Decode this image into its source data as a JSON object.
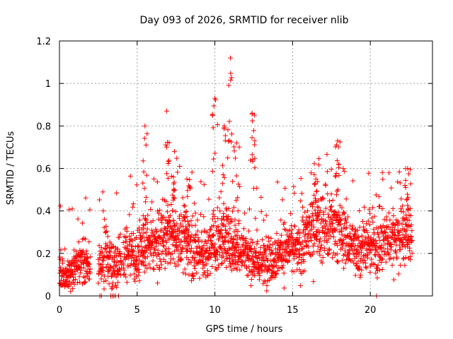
{
  "chart_data": {
    "type": "scatter",
    "title": "Day 093 of 2026, SRMTID for receiver nlib",
    "xlabel": "GPS time / hours",
    "ylabel": "SRMTID / TECUs",
    "xlim": [
      0,
      24
    ],
    "ylim": [
      0,
      1.2
    ],
    "x_ticks": [
      0,
      5,
      10,
      15,
      20
    ],
    "x_tick_labels": [
      "0",
      "5",
      "10",
      "15",
      "20"
    ],
    "y_ticks": [
      0,
      0.2,
      0.4,
      0.6,
      0.8,
      1,
      1.2
    ],
    "y_tick_labels": [
      "0",
      "0.2",
      "0.4",
      "0.6",
      "0.8",
      "1",
      "1.2"
    ],
    "grid": true,
    "marker": "+",
    "marker_color": "#ff0000",
    "series": [
      {
        "name": "SRMTID",
        "coverage_hours": [
          [
            0,
            2.0
          ],
          [
            2.5,
            4.0
          ],
          [
            4.1,
            22.7
          ]
        ],
        "trend": [
          [
            0.0,
            0.1
          ],
          [
            0.5,
            0.1
          ],
          [
            1.0,
            0.14
          ],
          [
            1.5,
            0.16
          ],
          [
            2.0,
            0.13
          ],
          [
            2.6,
            0.13
          ],
          [
            3.0,
            0.2
          ],
          [
            3.5,
            0.14
          ],
          [
            4.0,
            0.18
          ],
          [
            4.5,
            0.22
          ],
          [
            5.0,
            0.18
          ],
          [
            5.5,
            0.22
          ],
          [
            6.0,
            0.25
          ],
          [
            6.5,
            0.25
          ],
          [
            7.0,
            0.27
          ],
          [
            7.5,
            0.27
          ],
          [
            8.0,
            0.25
          ],
          [
            8.5,
            0.24
          ],
          [
            9.0,
            0.2
          ],
          [
            9.5,
            0.19
          ],
          [
            10.0,
            0.24
          ],
          [
            10.5,
            0.26
          ],
          [
            11.0,
            0.25
          ],
          [
            11.5,
            0.22
          ],
          [
            12.0,
            0.2
          ],
          [
            12.5,
            0.18
          ],
          [
            13.0,
            0.15
          ],
          [
            13.5,
            0.18
          ],
          [
            14.0,
            0.2
          ],
          [
            14.5,
            0.22
          ],
          [
            15.0,
            0.23
          ],
          [
            15.5,
            0.2
          ],
          [
            16.0,
            0.3
          ],
          [
            16.5,
            0.33
          ],
          [
            17.0,
            0.33
          ],
          [
            17.5,
            0.31
          ],
          [
            18.0,
            0.3
          ],
          [
            18.5,
            0.26
          ],
          [
            19.0,
            0.23
          ],
          [
            19.5,
            0.23
          ],
          [
            20.0,
            0.23
          ],
          [
            20.5,
            0.24
          ],
          [
            21.0,
            0.26
          ],
          [
            21.5,
            0.28
          ],
          [
            22.0,
            0.29
          ],
          [
            22.6,
            0.3
          ]
        ],
        "peaks": [
          {
            "x": 5.5,
            "y": 0.8
          },
          {
            "x": 6.9,
            "y": 0.87
          },
          {
            "x": 7.4,
            "y": 0.68
          },
          {
            "x": 8.2,
            "y": 0.55
          },
          {
            "x": 10.0,
            "y": 0.93
          },
          {
            "x": 10.6,
            "y": 0.8
          },
          {
            "x": 11.0,
            "y": 1.12
          },
          {
            "x": 11.4,
            "y": 0.72
          },
          {
            "x": 12.4,
            "y": 0.86
          },
          {
            "x": 16.5,
            "y": 0.55
          },
          {
            "x": 17.9,
            "y": 0.73
          },
          {
            "x": 22.4,
            "y": 0.6
          }
        ],
        "zero_points": [
          2.6,
          2.7,
          3.3,
          3.4,
          3.5,
          3.6,
          3.8,
          20.4
        ]
      }
    ]
  }
}
